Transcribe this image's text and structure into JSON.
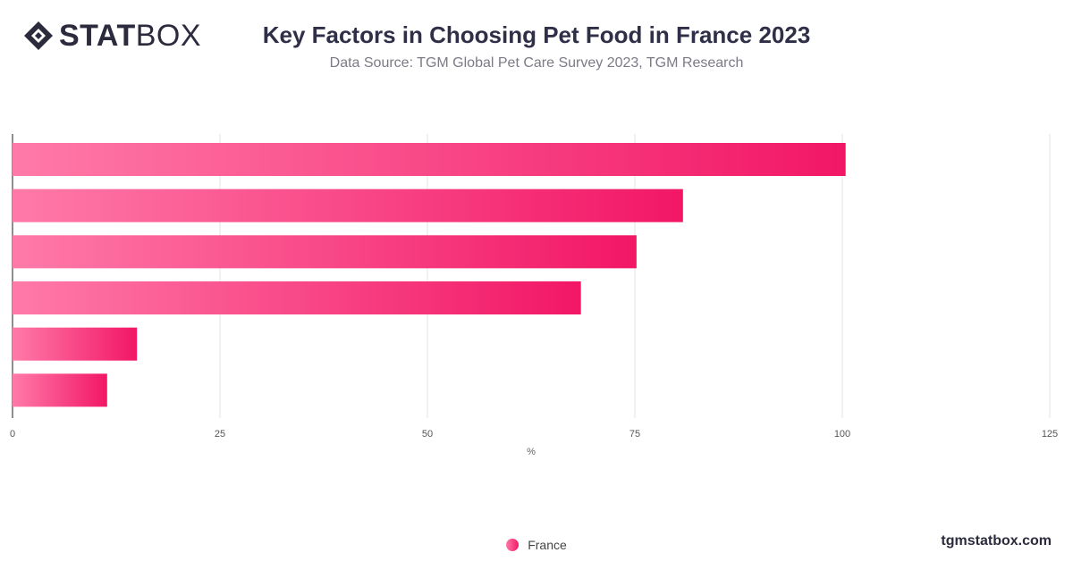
{
  "brand": {
    "logo_bold": "STAT",
    "logo_light": "BOX",
    "watermark": "tgmstatbox.com"
  },
  "chart_data": {
    "type": "bar",
    "orientation": "horizontal",
    "title": "Key Factors in Choosing Pet Food in France 2023",
    "subtitle": "Data Source: TGM Global Pet Care Survey 2023, TGM Research",
    "xlabel": "%",
    "ylabel": "",
    "xlim": [
      0,
      125
    ],
    "xticks": [
      0,
      25,
      50,
      75,
      100,
      125
    ],
    "grid": true,
    "legend_position": "bottom",
    "categories": [
      "",
      "",
      "",
      "",
      "",
      ""
    ],
    "series": [
      {
        "name": "France",
        "values": [
          100.4,
          80.8,
          75.2,
          68.5,
          15.0,
          11.4
        ],
        "color_start": "#ff7aa8",
        "color_end": "#f21766"
      }
    ]
  }
}
